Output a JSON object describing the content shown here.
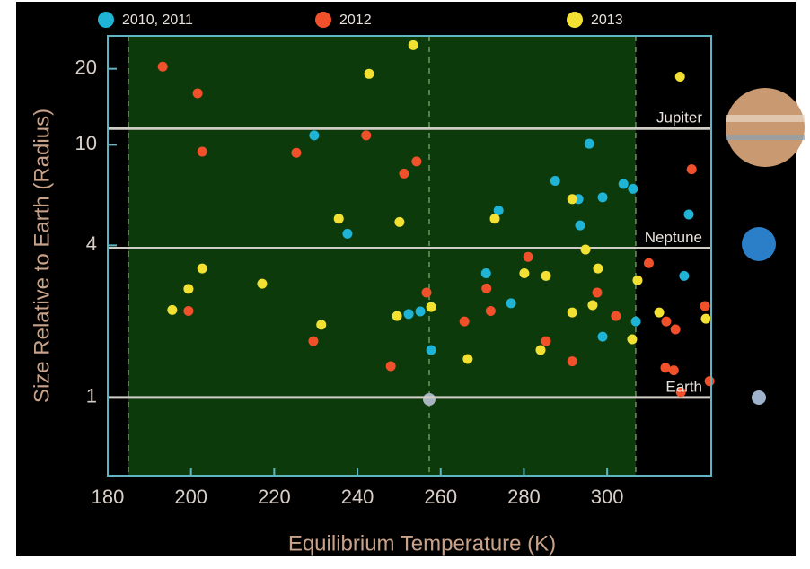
{
  "chart_data": {
    "type": "scatter",
    "x_label": "Equilibrium Temperature (K)",
    "y_label": "Size Relative to Earth (Radius)",
    "log_y": true,
    "xlim": [
      180,
      325
    ],
    "ylim": [
      0.49,
      27
    ],
    "xticks": [
      180,
      200,
      220,
      240,
      260,
      280,
      300
    ],
    "yticks": [
      1,
      4,
      10,
      20
    ],
    "reference_lines": [
      {
        "label": "Jupiter",
        "value": 11.6
      },
      {
        "label": "Neptune",
        "value": 3.9
      },
      {
        "label": "Earth",
        "value": 1
      }
    ],
    "series": [
      {
        "name": "2010, 2011",
        "color": "#1fb3d6",
        "x": [
          229.6,
          237.6,
          252.3,
          255.1,
          257.7,
          270.9,
          273.9,
          276.9,
          287.5,
          295.7,
          293.1,
          293.5,
          298.9,
          298.9,
          303.9,
          306.2,
          306.9,
          319.6,
          318.5
        ],
        "values": [
          10.9,
          4.45,
          2.14,
          2.19,
          1.54,
          3.1,
          5.5,
          2.36,
          7.2,
          10.1,
          6.1,
          4.8,
          6.2,
          1.74,
          7.0,
          6.7,
          2.0,
          5.3,
          3.03
        ]
      },
      {
        "name": "2012",
        "color": "#f0502a",
        "x": [
          193.2,
          201.6,
          202.7,
          225.3,
          242.1,
          251.2,
          254.2,
          256.6,
          281,
          271,
          272,
          265.7,
          229.4,
          199.4,
          248,
          285.3,
          291.6,
          297.6,
          302.1,
          310,
          314.2,
          316.4,
          314,
          316,
          317.7,
          320.3,
          323.5,
          324.6
        ],
        "values": [
          20.4,
          16,
          9.4,
          9.3,
          10.9,
          7.7,
          8.6,
          2.6,
          3.6,
          2.7,
          2.2,
          2.0,
          1.67,
          2.2,
          1.33,
          1.67,
          1.39,
          2.6,
          2.1,
          3.4,
          2.0,
          1.86,
          1.31,
          1.28,
          1.05,
          8.0,
          2.3,
          1.16
        ]
      },
      {
        "name": "2013",
        "color": "#f2e033",
        "x": [
          253.4,
          242.8,
          202.7,
          199.4,
          195.5,
          217.1,
          231.3,
          235.5,
          249.5,
          250.1,
          257.7,
          266.5,
          273,
          280.1,
          284,
          285.3,
          291.6,
          291.6,
          294.8,
          296.5,
          297.8,
          306,
          307.3,
          312.5,
          317.5,
          323.7
        ],
        "values": [
          24.8,
          19.1,
          3.24,
          2.69,
          2.22,
          2.82,
          1.94,
          5.1,
          2.1,
          4.95,
          2.28,
          1.42,
          5.1,
          3.1,
          1.54,
          3.03,
          6.1,
          2.17,
          3.85,
          2.32,
          3.24,
          1.7,
          2.91,
          2.17,
          18.6,
          2.05
        ]
      }
    ]
  }
}
